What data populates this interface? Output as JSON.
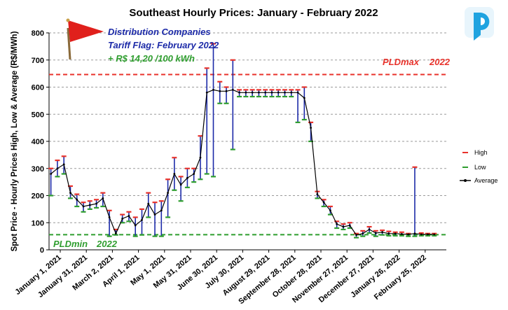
{
  "chart_data": {
    "type": "line",
    "title": "Southeast Hourly Prices: January - February 2022",
    "ylabel": "Spot Price - Hourly Prices High, Low & Average (R$/MWh)",
    "xlabel": "",
    "ylim": [
      0,
      800
    ],
    "yticks": [
      0,
      100,
      200,
      300,
      400,
      500,
      600,
      700,
      800
    ],
    "x_tick_labels": [
      "January 1, 2021",
      "January 31, 2021",
      "March 2, 2021",
      "April 1, 2021",
      "May 1, 2021",
      "May 31, 2021",
      "June 30, 2021",
      "July 30, 2021",
      "August 29, 2021",
      "September 28, 2021",
      "October 28, 2021",
      "November 27, 2021",
      "December 27, 2021",
      "January 26, 2022",
      "February 25, 2022"
    ],
    "grid": "horizontal dashed",
    "legend_position": "right",
    "series": [
      {
        "name": "High",
        "color": "#e8322b",
        "marker": "dash"
      },
      {
        "name": "Low",
        "color": "#2f9e2f",
        "marker": "dash"
      },
      {
        "name": "Average",
        "color": "#000000",
        "marker": "dot-line"
      }
    ],
    "range_color": "#1c2aa8",
    "weekly_prices": {
      "x": [
        "2021-01-03",
        "2021-01-10",
        "2021-01-17",
        "2021-01-24",
        "2021-01-31",
        "2021-02-07",
        "2021-02-14",
        "2021-02-21",
        "2021-02-28",
        "2021-03-07",
        "2021-03-14",
        "2021-03-21",
        "2021-03-28",
        "2021-04-04",
        "2021-04-11",
        "2021-04-18",
        "2021-04-25",
        "2021-05-02",
        "2021-05-09",
        "2021-05-16",
        "2021-05-23",
        "2021-05-30",
        "2021-06-06",
        "2021-06-13",
        "2021-06-20",
        "2021-06-27",
        "2021-07-04",
        "2021-07-11",
        "2021-07-18",
        "2021-07-25",
        "2021-08-01",
        "2021-08-08",
        "2021-08-15",
        "2021-08-22",
        "2021-08-29",
        "2021-09-05",
        "2021-09-12",
        "2021-09-19",
        "2021-09-26",
        "2021-10-03",
        "2021-10-10",
        "2021-10-17",
        "2021-10-24",
        "2021-10-31",
        "2021-11-07",
        "2021-11-14",
        "2021-11-21",
        "2021-11-28",
        "2021-12-05",
        "2021-12-12",
        "2021-12-19",
        "2021-12-26",
        "2022-01-02",
        "2022-01-09",
        "2022-01-16",
        "2022-01-23",
        "2022-01-30",
        "2022-02-06",
        "2022-02-13",
        "2022-02-20"
      ],
      "high": [
        300,
        330,
        345,
        235,
        205,
        175,
        180,
        185,
        210,
        145,
        75,
        130,
        140,
        120,
        150,
        210,
        175,
        180,
        260,
        340,
        270,
        300,
        300,
        420,
        670,
        760,
        620,
        600,
        700,
        590,
        590,
        590,
        590,
        590,
        590,
        590,
        590,
        590,
        590,
        600,
        470,
        215,
        185,
        160,
        105,
        95,
        100,
        60,
        70,
        85,
        70,
        72,
        68,
        65,
        65,
        60,
        305,
        62,
        60,
        60
      ],
      "low": [
        200,
        270,
        280,
        190,
        160,
        140,
        150,
        155,
        160,
        50,
        55,
        100,
        105,
        50,
        55,
        120,
        50,
        50,
        120,
        220,
        180,
        230,
        250,
        260,
        280,
        270,
        540,
        540,
        370,
        565,
        565,
        565,
        565,
        565,
        565,
        565,
        565,
        565,
        470,
        480,
        400,
        190,
        160,
        130,
        80,
        75,
        80,
        45,
        50,
        62,
        50,
        55,
        52,
        52,
        52,
        50,
        50,
        52,
        52,
        52
      ],
      "average": [
        280,
        300,
        315,
        210,
        185,
        160,
        165,
        170,
        190,
        120,
        60,
        115,
        125,
        90,
        110,
        170,
        130,
        145,
        210,
        280,
        240,
        265,
        280,
        340,
        580,
        590,
        585,
        585,
        590,
        580,
        580,
        580,
        580,
        580,
        580,
        580,
        580,
        580,
        580,
        560,
        450,
        205,
        175,
        145,
        95,
        85,
        90,
        55,
        60,
        75,
        62,
        65,
        60,
        60,
        58,
        57,
        60,
        57,
        57,
        57
      ]
    },
    "reference_lines": [
      {
        "name": "PLDmax 2022",
        "value": 646.58,
        "color": "#e8322b"
      },
      {
        "name": "PLDmin 2022",
        "value": 55.7,
        "color": "#2f9e2f"
      }
    ],
    "annotations": {
      "flag_line1": "Distribution Companies",
      "flag_line2": "Tariff Flag: February 2022",
      "flag_line3": "+ R$ 14,20 /100 kWh",
      "pldmax_label": "PLDmax",
      "pldmax_sub": "2022",
      "pldmin_label": "PLDmin",
      "pldmin_sub": "2022"
    },
    "legend": {
      "high": "High",
      "low": "Low",
      "average": "Average"
    }
  },
  "colors": {
    "accent_logo": "#1fa3e0"
  }
}
